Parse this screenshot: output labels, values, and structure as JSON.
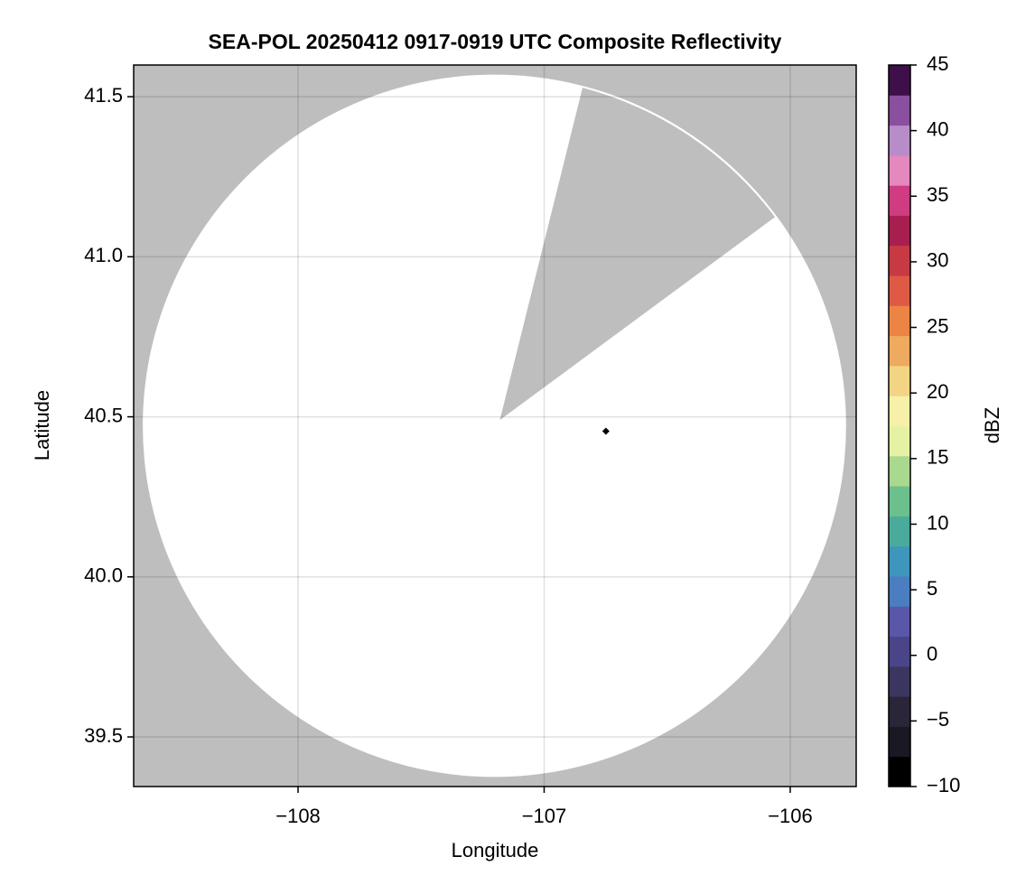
{
  "chart_data": {
    "type": "radar_composite",
    "title": "SEA-POL 20250412 0917-0919 UTC Composite Reflectivity",
    "x_label": "Longitude",
    "y_label": "Latitude",
    "xlim": [
      -108.668,
      -105.732
    ],
    "ylim": [
      39.345,
      41.599
    ],
    "xticks": [
      {
        "value": -108,
        "label": "−108"
      },
      {
        "value": -107,
        "label": "−107"
      },
      {
        "value": -106,
        "label": "−106"
      }
    ],
    "yticks": [
      39.5,
      {
        "value": 40,
        "label": "40.0"
      },
      40.5,
      {
        "value": 41,
        "label": "41.0"
      },
      41.5
    ],
    "grid": true,
    "background_color": "#bebebe",
    "coverage": {
      "center": [
        -107.202,
        40.472
      ],
      "radius_lon": 1.429,
      "radius_lat": 1.097,
      "color": "#ffffff"
    },
    "blocked_sector": {
      "apex": [
        -107.18,
        40.49
      ],
      "edge_points": [
        [
          -106.844,
          41.528
        ],
        [
          -106.062,
          41.124
        ]
      ],
      "color": "#bebebe"
    },
    "marker": {
      "lon": -106.749,
      "lat": 40.455,
      "color": "#000000"
    },
    "colorbar": {
      "label": "dBZ",
      "lim": [
        -10,
        45
      ],
      "ticks": [
        {
          "value": -10,
          "label": "−10"
        },
        {
          "value": -5,
          "label": "−5"
        },
        0,
        5,
        10,
        15,
        20,
        25,
        30,
        35,
        40,
        45
      ],
      "colors": [
        "#000000",
        "#1a1822",
        "#2a2538",
        "#3b3660",
        "#4a4589",
        "#5a56a8",
        "#4a7ec0",
        "#3e96bd",
        "#4aab9d",
        "#6cc08e",
        "#a9d88f",
        "#e6f2a3",
        "#f7f0a8",
        "#f2d584",
        "#eeaa5e",
        "#ec8444",
        "#df5a44",
        "#c83a43",
        "#a81f4f",
        "#cf3c82",
        "#e488be",
        "#b78cc8",
        "#8a4f9e",
        "#3f0f4a"
      ]
    }
  }
}
